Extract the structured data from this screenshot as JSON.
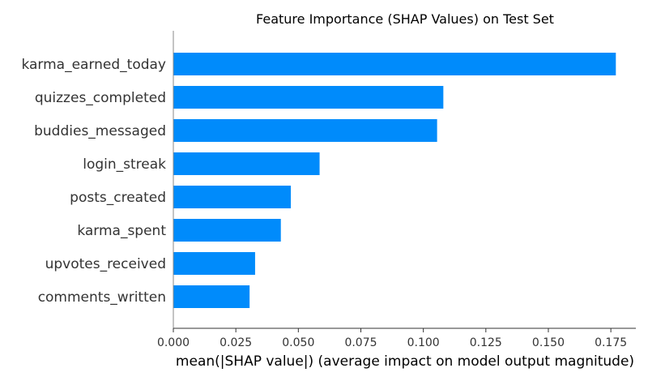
{
  "chart_data": {
    "type": "bar",
    "orientation": "horizontal",
    "title": "Feature Importance (SHAP Values) on Test Set",
    "xlabel": "mean(|SHAP value|) (average impact on model output magnitude)",
    "ylabel": "",
    "categories": [
      "karma_earned_today",
      "quizzes_completed",
      "buddies_messaged",
      "login_streak",
      "posts_created",
      "karma_spent",
      "upvotes_received",
      "comments_written"
    ],
    "values": [
      0.177,
      0.108,
      0.1055,
      0.0585,
      0.047,
      0.043,
      0.0327,
      0.0305
    ],
    "xlim": [
      0,
      0.185
    ],
    "xticks": [
      "0.000",
      "0.025",
      "0.050",
      "0.075",
      "0.100",
      "0.125",
      "0.150",
      "0.175"
    ],
    "grid": false,
    "bar_color": "#008bfb"
  }
}
